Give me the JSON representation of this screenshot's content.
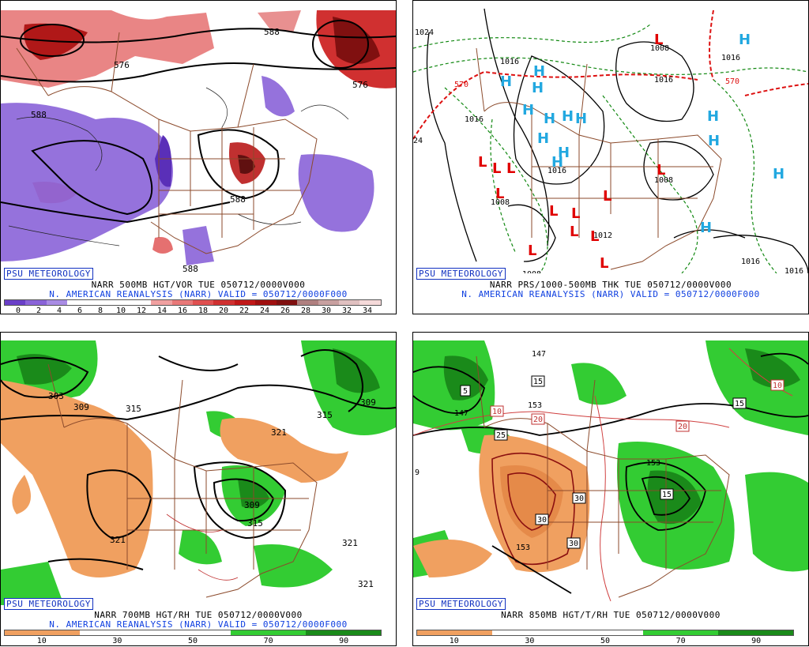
{
  "panels": [
    {
      "id": "vort",
      "psu": "PSU METEOROLOGY",
      "line1": "NARR 500MB HGT/VOR TUE 050712/0000V000",
      "line2": "N. AMERICAN REANALYSIS (NARR) VALID = 050712/0000F000",
      "contour_labels": [
        "588",
        "576",
        "588",
        "576",
        "588",
        "588"
      ],
      "scale": {
        "labels": [
          "0",
          "2",
          "4",
          "6",
          "8",
          "10",
          "12",
          "14",
          "16",
          "18",
          "20",
          "22",
          "24",
          "26",
          "28",
          "30",
          "32",
          "34"
        ],
        "colors": [
          "#6a3fc8",
          "#8a63d8",
          "#a98ce4",
          "#ffffff",
          "#ffffff",
          "#ffffff",
          "#ffffff",
          "#f0a0a0",
          "#e87878",
          "#e05050",
          "#d03030",
          "#c01818",
          "#a01010",
          "#801010",
          "#b08080",
          "#c8a0a0",
          "#e0c0c0",
          "#f5dada"
        ]
      }
    },
    {
      "id": "pres",
      "psu": "PSU METEOROLOGY",
      "line1": "NARR PRS/1000-500MB THK TUE 050712/0000V000",
      "line2": "N. AMERICAN REANALYSIS (NARR) VALID = 050712/0000F000",
      "contour_labels": [
        "1024",
        "1008",
        "1016",
        "1016",
        "1016",
        "1016",
        "1008",
        "1016",
        "1008",
        "1012",
        "1016",
        "1016",
        "1008",
        "570",
        "570",
        "24"
      ]
    },
    {
      "id": "rh700",
      "psu": "PSU METEOROLOGY",
      "line1": "NARR 700MB HGT/RH TUE 050712/0000V000",
      "line2": "N. AMERICAN REANALYSIS (NARR) VALID = 050712/0000F000",
      "contour_labels": [
        "303",
        "309",
        "315",
        "315",
        "309",
        "321",
        "309",
        "315",
        "321",
        "321",
        "321"
      ],
      "scale": {
        "labels": [
          "10",
          "30",
          "50",
          "70",
          "90"
        ],
        "colors": [
          "#f0a060",
          "#ffffff",
          "#ffffff",
          "#33cc33",
          "#1a8a1a"
        ]
      }
    },
    {
      "id": "rh850",
      "psu": "PSU METEOROLOGY",
      "line1": "NARR 850MB HGT/T/RH TUE 050712/0000V000",
      "line2": "",
      "contour_labels": [
        "147",
        "147",
        "153",
        "153",
        "153",
        "5",
        "15",
        "10",
        "20",
        "25",
        "20",
        "30",
        "30",
        "30",
        "15",
        "15",
        "10",
        "9"
      ],
      "scale": {
        "labels": [
          "10",
          "30",
          "50",
          "70",
          "90"
        ],
        "colors": [
          "#f0a060",
          "#ffffff",
          "#ffffff",
          "#33cc33",
          "#1a8a1a"
        ]
      }
    }
  ],
  "pressure_centers": {
    "H": [
      "H",
      "H",
      "H",
      "H",
      "H",
      "H",
      "H",
      "H",
      "H",
      "H",
      "H",
      "H",
      "H",
      "H",
      "H"
    ],
    "L": [
      "L",
      "L",
      "L",
      "L",
      "L",
      "L",
      "L",
      "L",
      "L",
      "L",
      "L",
      "L",
      "L"
    ]
  },
  "colors": {
    "vort_pos": "#d04040",
    "vort_neg": "#7a55d8",
    "rh_moist": "#33cc33",
    "rh_dry": "#f0a060",
    "map_border": "#8b4a2b",
    "high": "#22a8e0",
    "low": "#e00000",
    "label_blue": "#1040e0"
  }
}
